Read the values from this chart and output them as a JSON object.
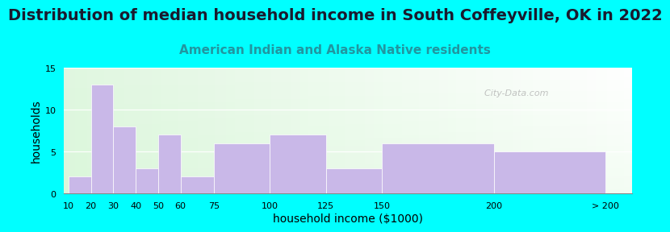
{
  "title": "Distribution of median household income in South Coffeyville, OK in 2022",
  "subtitle": "American Indian and Alaska Native residents",
  "xlabel": "household income ($1000)",
  "ylabel": "households",
  "bar_labels": [
    "10",
    "20",
    "30",
    "40",
    "50",
    "60",
    "75",
    "100",
    "125",
    "150",
    "200",
    "> 200"
  ],
  "bar_heights": [
    2,
    13,
    8,
    3,
    7,
    2,
    6,
    7,
    3,
    6,
    5
  ],
  "bar_color": "#c9b8e8",
  "background_color": "#00ffff",
  "ylim": [
    0,
    15
  ],
  "yticks": [
    0,
    5,
    10,
    15
  ],
  "watermark": "  City-Data.com",
  "title_fontsize": 14,
  "subtitle_fontsize": 11,
  "subtitle_color": "#2196a0",
  "axis_label_fontsize": 10,
  "tick_fontsize": 8,
  "x_positions": [
    10,
    20,
    30,
    40,
    50,
    60,
    75,
    100,
    125,
    150,
    200
  ],
  "x_widths": [
    10,
    10,
    10,
    10,
    10,
    15,
    25,
    25,
    25,
    50,
    50
  ],
  "xlim": [
    8,
    262
  ],
  "last_tick_x": 250
}
